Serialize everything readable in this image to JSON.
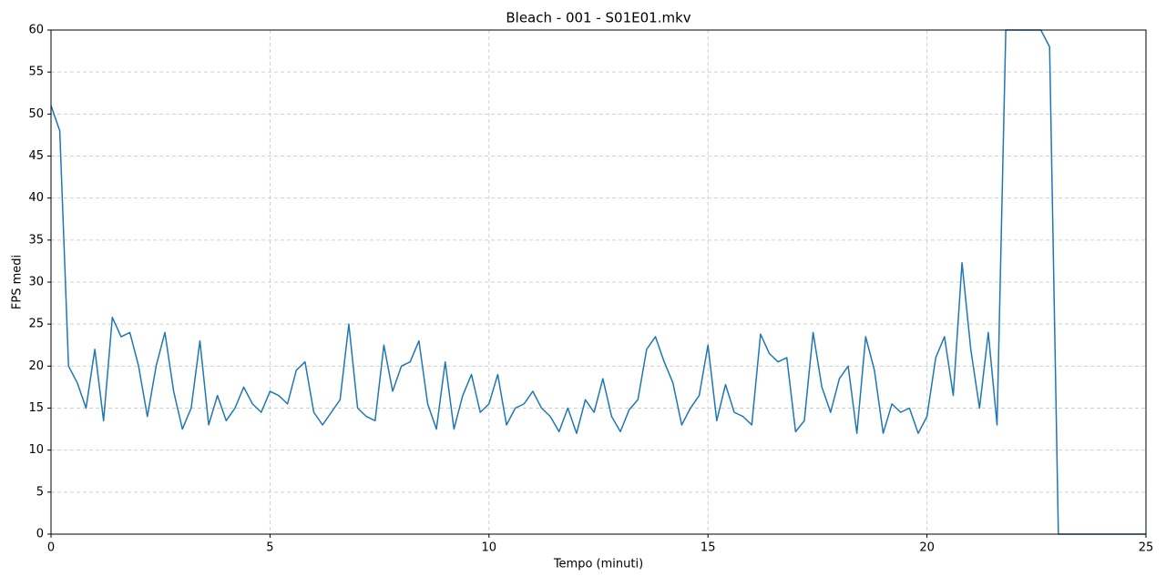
{
  "chart_data": {
    "type": "line",
    "title": "Bleach - 001 - S01E01.mkv",
    "xlabel": "Tempo (minuti)",
    "ylabel": "FPS medi",
    "color": "#1f77b4",
    "grid": true,
    "xlim": [
      0,
      25
    ],
    "ylim": [
      0,
      60
    ],
    "xticks": [
      0,
      5,
      10,
      15,
      20,
      25
    ],
    "yticks": [
      0,
      5,
      10,
      15,
      20,
      25,
      30,
      35,
      40,
      45,
      50,
      55,
      60
    ],
    "x": [
      0,
      0.2,
      0.4,
      0.6,
      0.8,
      1,
      1.2,
      1.4,
      1.6,
      1.8,
      2,
      2.2,
      2.4,
      2.6,
      2.8,
      3,
      3.2,
      3.4,
      3.6,
      3.8,
      4,
      4.2,
      4.4,
      4.6,
      4.8,
      5,
      5.2,
      5.4,
      5.6,
      5.8,
      6,
      6.2,
      6.4,
      6.6,
      6.8,
      7,
      7.2,
      7.4,
      7.6,
      7.8,
      8,
      8.2,
      8.4,
      8.6,
      8.8,
      9,
      9.2,
      9.4,
      9.6,
      9.8,
      10,
      10.2,
      10.4,
      10.6,
      10.8,
      11,
      11.2,
      11.4,
      11.6,
      11.8,
      12,
      12.2,
      12.4,
      12.6,
      12.8,
      13,
      13.2,
      13.4,
      13.6,
      13.8,
      14,
      14.2,
      14.4,
      14.6,
      14.8,
      15,
      15.2,
      15.4,
      15.6,
      15.8,
      16,
      16.2,
      16.4,
      16.6,
      16.8,
      17,
      17.2,
      17.4,
      17.6,
      17.8,
      18,
      18.2,
      18.4,
      18.6,
      18.8,
      19,
      19.2,
      19.4,
      19.6,
      19.8,
      20,
      20.2,
      20.4,
      20.6,
      20.8,
      21,
      21.2,
      21.4,
      21.6,
      21.8,
      22,
      22.2,
      22.4,
      22.6,
      22.8,
      23,
      23.2,
      23.4,
      23.6,
      23.8,
      24,
      24.2,
      24.4,
      24.6,
      24.8,
      25
    ],
    "values": [
      51,
      48,
      20,
      18,
      15,
      22,
      13.5,
      25.8,
      23.5,
      24,
      20,
      14,
      20,
      24,
      17,
      12.5,
      15,
      23,
      13,
      16.5,
      13.5,
      15,
      17.5,
      15.5,
      14.5,
      17,
      16.5,
      15.5,
      19.5,
      20.5,
      14.5,
      13,
      14.5,
      16,
      25,
      15,
      14,
      13.5,
      22.5,
      17,
      20,
      20.5,
      23,
      15.5,
      12.5,
      20.5,
      12.5,
      16.5,
      19,
      14.5,
      15.5,
      19,
      13,
      15,
      15.5,
      17,
      15,
      14,
      12.2,
      15,
      12,
      16,
      14.5,
      18.5,
      14,
      12.2,
      14.8,
      16,
      22,
      23.5,
      20.5,
      18,
      13,
      15,
      16.5,
      22.5,
      13.5,
      17.8,
      14.5,
      14,
      13,
      23.8,
      21.5,
      20.5,
      21,
      12.2,
      13.5,
      24,
      17.5,
      14.5,
      18.5,
      20,
      12,
      23.5,
      19.5,
      12,
      15.5,
      14.5,
      15,
      12,
      14,
      21,
      23.5,
      16.5,
      32.3,
      22,
      15,
      24,
      13,
      60,
      60,
      60,
      60,
      60,
      58,
      0,
      0,
      0,
      0,
      0,
      0,
      0,
      0,
      0,
      0,
      0
    ]
  }
}
